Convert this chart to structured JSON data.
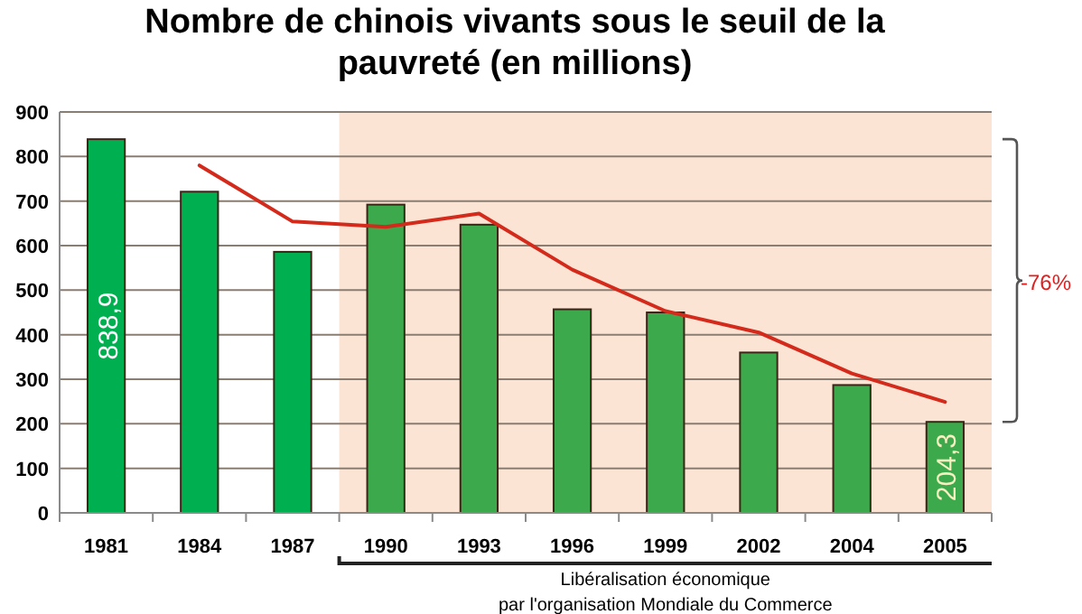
{
  "chart_data": {
    "type": "bar",
    "title": "Nombre de chinois vivants sous le seuil de la\npauvreté (en millions)",
    "categories": [
      "1981",
      "1984",
      "1987",
      "1990",
      "1993",
      "1996",
      "1999",
      "2002",
      "2004",
      "2005"
    ],
    "series": [
      {
        "values": [
          838.9,
          721,
          586,
          692,
          647,
          457,
          450,
          360,
          287,
          204.3
        ],
        "colors": [
          "#00b050",
          "#00b050",
          "#00b050",
          "#3ca94c",
          "#3ca94c",
          "#3ca94c",
          "#3ca94c",
          "#3ca94c",
          "#3ca94c",
          "#3ca94c"
        ],
        "value_labels": [
          "838,9",
          null,
          null,
          null,
          null,
          null,
          null,
          null,
          null,
          "204,3"
        ]
      },
      {
        "type": "line",
        "color": "#d42a1c",
        "values": [
          null,
          780,
          654,
          642,
          672,
          546,
          453,
          405,
          313,
          249
        ]
      }
    ],
    "ylim": [
      0,
      900
    ],
    "yticks": [
      0,
      100,
      200,
      300,
      400,
      500,
      600,
      700,
      800,
      900
    ],
    "grid": "y",
    "bands": [
      {
        "axis": "x",
        "from": "1990",
        "to": "2005",
        "color": "#fce4d4"
      }
    ],
    "annotations": [
      "-76%",
      "Libéralisation économique\npar l'organisation  Mondiale du Commerce"
    ]
  }
}
